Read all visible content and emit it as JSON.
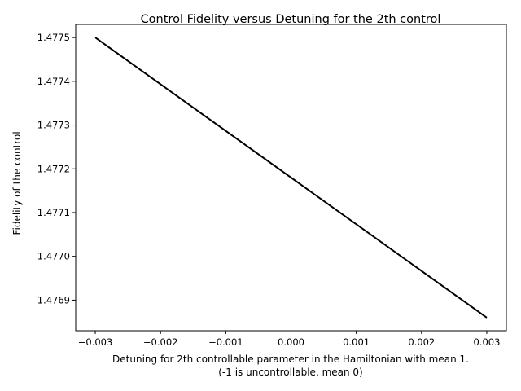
{
  "chart_data": {
    "type": "line",
    "title": "Control Fidelity versus Detuning for the 2th control",
    "xlabel_line1": "Detuning for 2th controllable parameter in the Hamiltonian with mean 1.",
    "xlabel_line2": "(-1 is uncontrollable, mean 0)",
    "ylabel": "Fidelity of the control.",
    "x": [
      -0.003,
      0.003
    ],
    "y": [
      1.4775,
      1.47686
    ],
    "xlim": [
      -0.0033,
      0.0033
    ],
    "ylim": [
      1.47683,
      1.47753
    ],
    "xticks": [
      -0.003,
      -0.002,
      -0.001,
      0.0,
      0.001,
      0.002,
      0.003
    ],
    "xtick_labels": [
      "−0.003",
      "−0.002",
      "−0.001",
      "0.000",
      "0.001",
      "0.002",
      "0.003"
    ],
    "yticks": [
      1.4769,
      1.477,
      1.4771,
      1.4772,
      1.4773,
      1.4774,
      1.4775
    ],
    "ytick_labels": [
      "1.4769",
      "1.4770",
      "1.4771",
      "1.4772",
      "1.4773",
      "1.4774",
      "1.4775"
    ],
    "line_color": "#000000",
    "grid": false,
    "legend": "none"
  }
}
